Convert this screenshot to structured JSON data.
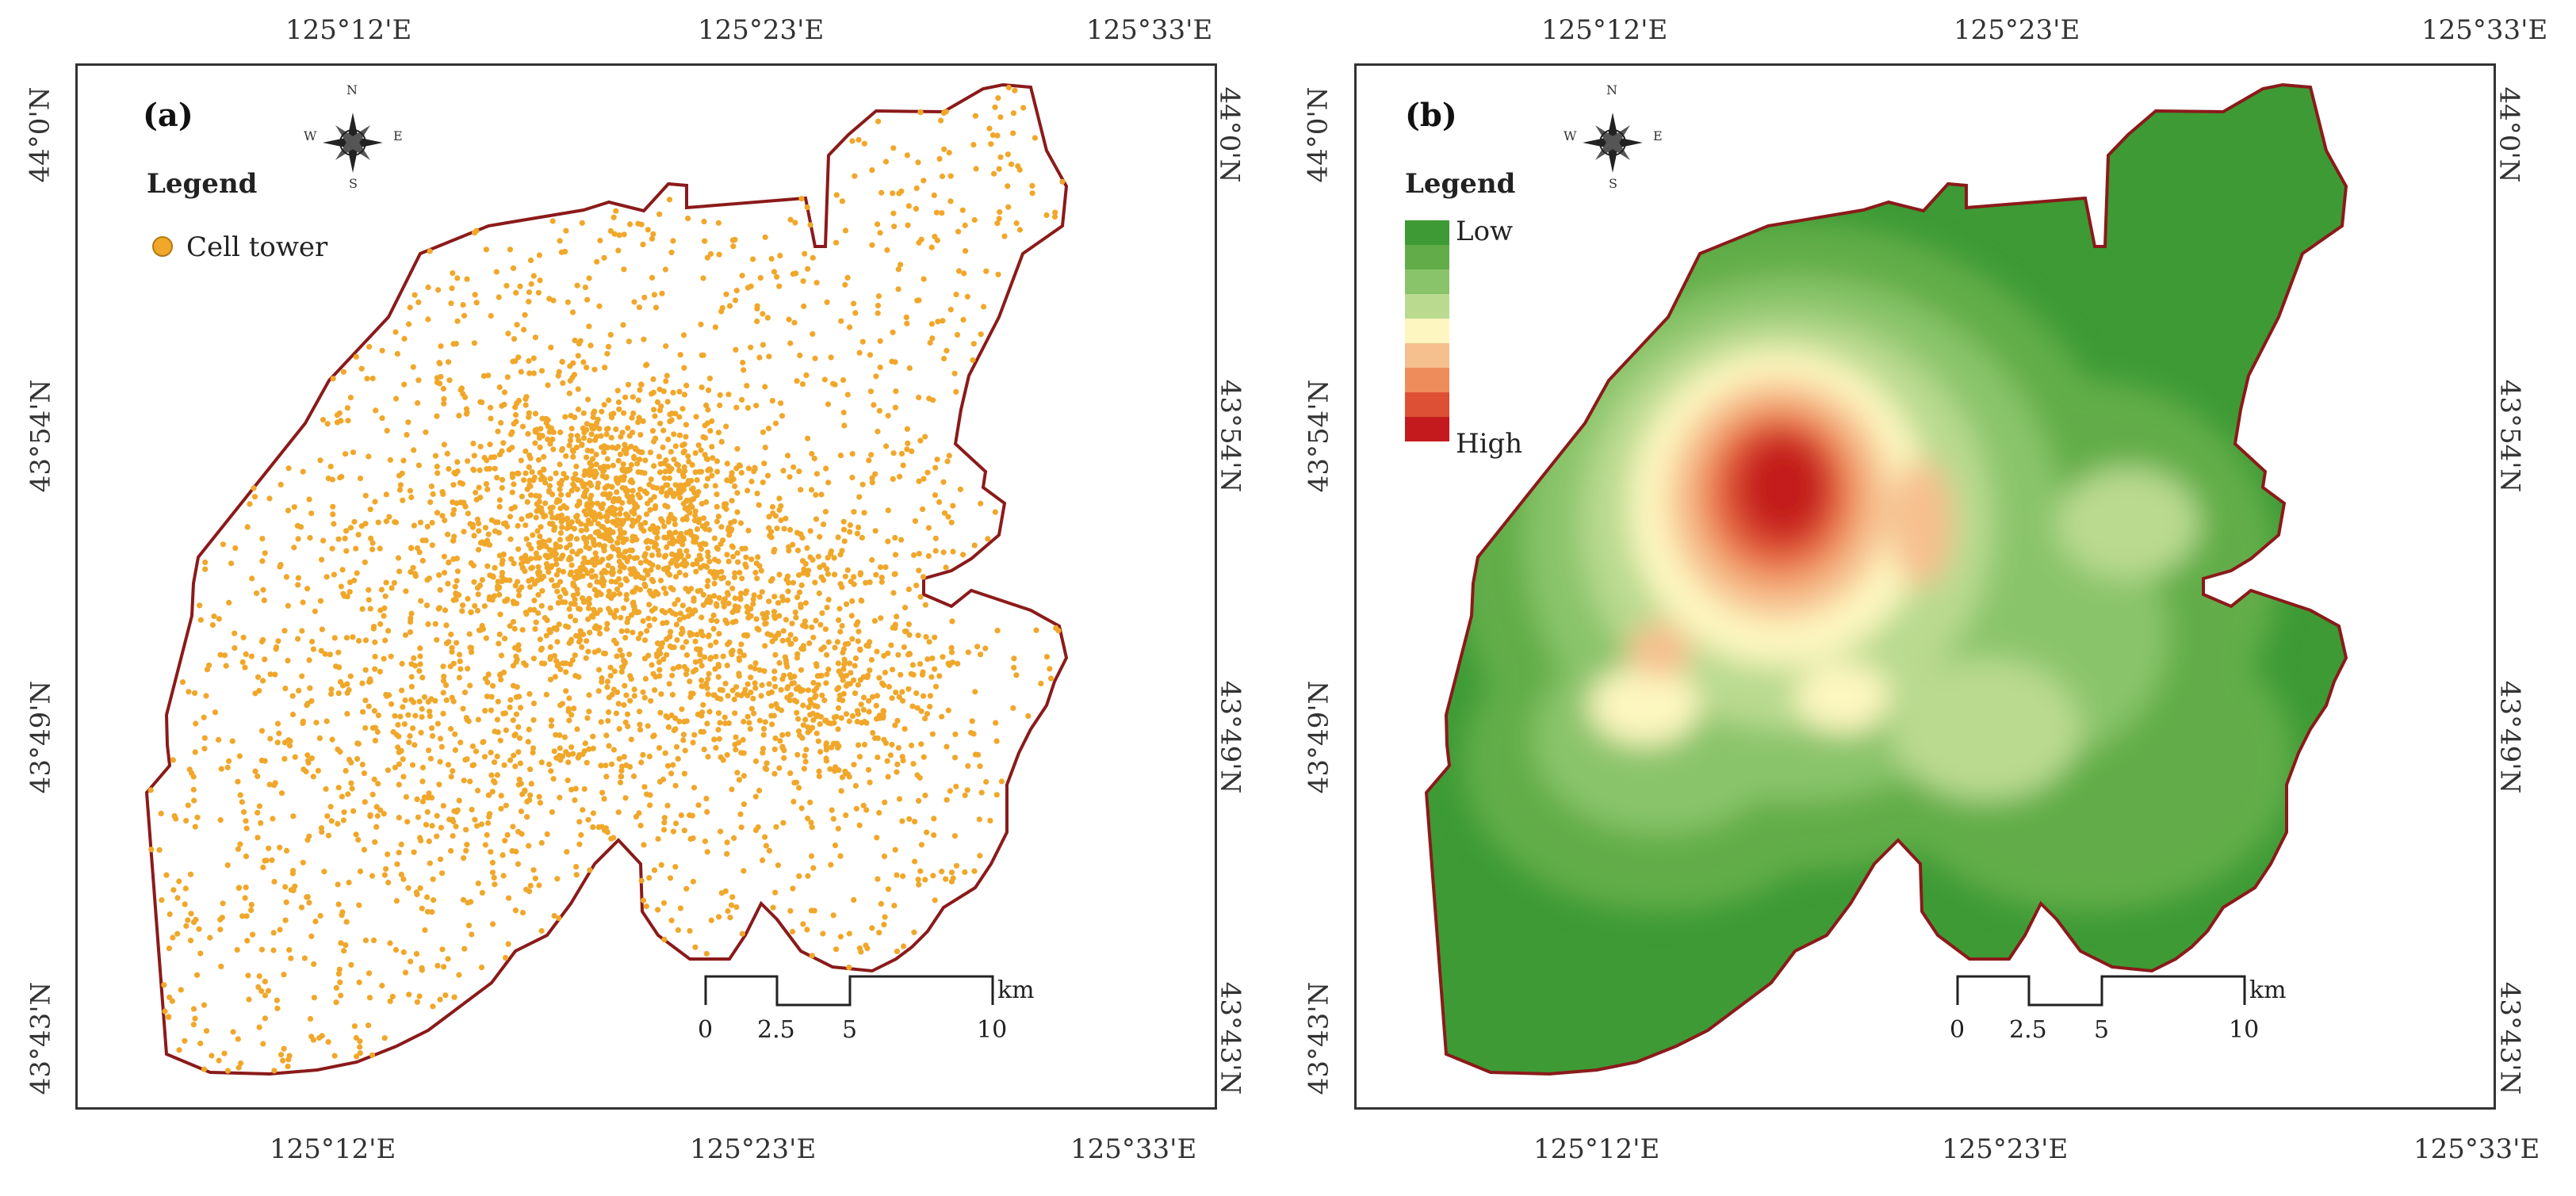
{
  "panels": [
    {
      "tag": "(a)",
      "legend_title": "Legend",
      "legend_items": [
        {
          "label": "Cell tower",
          "color": "#f0a72a"
        }
      ],
      "compass_letters": {
        "n": "N",
        "s": "S",
        "w": "W",
        "e": "E"
      }
    },
    {
      "tag": "(b)",
      "legend_title": "Legend",
      "legend_low": "Low",
      "legend_high": "High",
      "ramp_colors": [
        "#3d9a35",
        "#62ad4a",
        "#8ac46a",
        "#b9da8f",
        "#fdf6c0",
        "#f6c08e",
        "#ef8c5c",
        "#dd5035",
        "#c41a1e"
      ],
      "compass_letters": {
        "n": "N",
        "s": "S",
        "w": "W",
        "e": "E"
      }
    }
  ],
  "axes": {
    "lon_ticks": [
      "125°12'E",
      "125°23'E",
      "125°33'E"
    ],
    "lat_ticks": [
      "44°0'N",
      "43°54'N",
      "43°49'N",
      "43°43'N"
    ]
  },
  "scale_bar": {
    "labels": [
      "0",
      "2.5",
      "5",
      "10"
    ],
    "unit": "km"
  },
  "colors": {
    "boundary": "#8b1a1a",
    "points": "#f0a72a",
    "frame": "#333333"
  }
}
